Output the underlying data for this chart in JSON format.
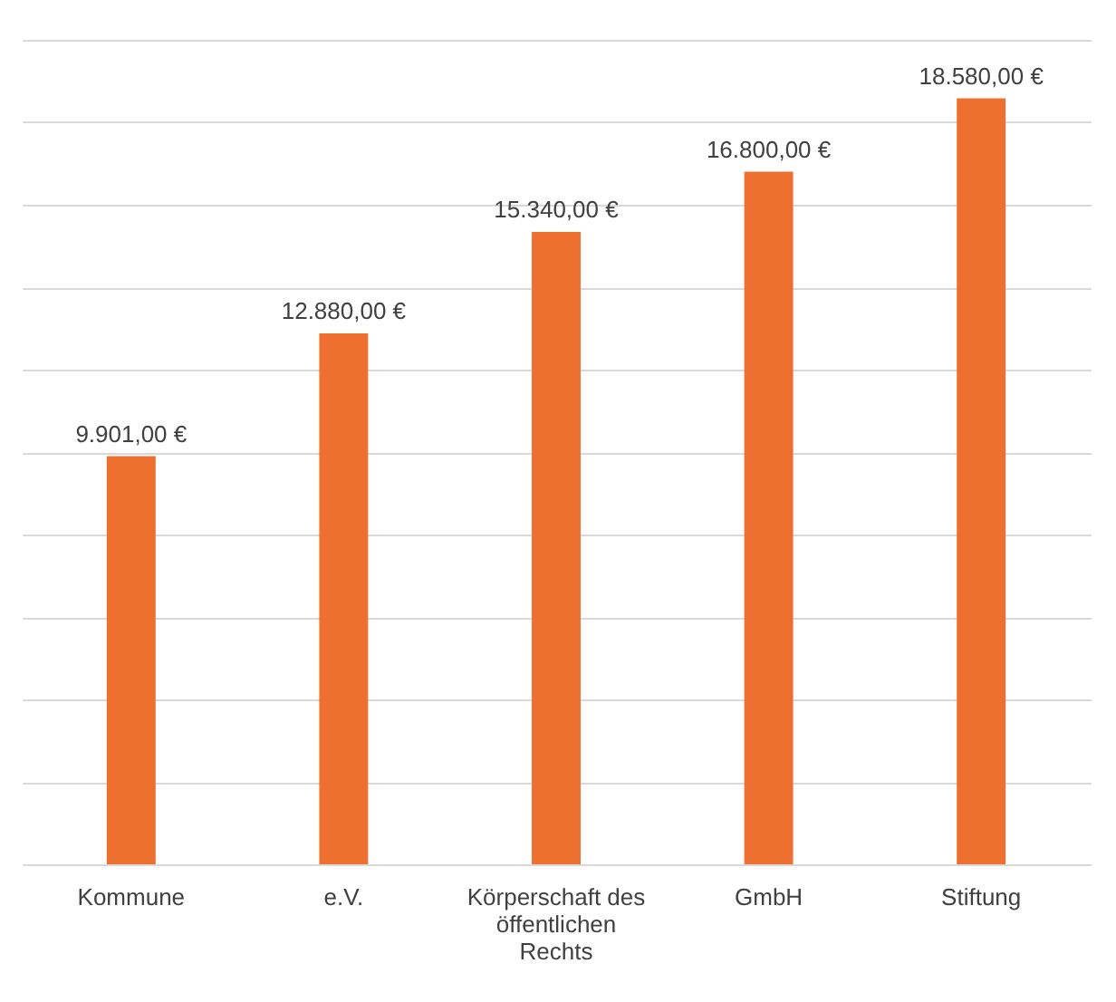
{
  "chart_data": {
    "type": "bar",
    "categories": [
      "Kommune",
      "e.V.",
      "Körperschaft des öffentlichen Rechts",
      "GmbH",
      "Stiftung"
    ],
    "values": [
      9901,
      12880,
      15340,
      16800,
      18580
    ],
    "value_labels": [
      "9.901,00 €",
      "12.880,00 €",
      "15.340,00 €",
      "16.800,00 €",
      "18.580,00 €"
    ],
    "color": "#ed7031",
    "ylim": [
      0,
      20000
    ],
    "yticks": [
      {
        "value": 0,
        "label": null
      },
      {
        "value": 2000,
        "label": null
      },
      {
        "value": 4000,
        "label": null
      },
      {
        "value": 6000,
        "label": null
      },
      {
        "value": 8000,
        "label": null
      },
      {
        "value": 10000,
        "label": null
      },
      {
        "value": 12000,
        "label": null
      },
      {
        "value": 14000,
        "label": null
      },
      {
        "value": 16000,
        "label": null
      },
      {
        "value": 18000,
        "label": null
      },
      {
        "value": 20000,
        "label": null
      }
    ],
    "tick_labels": "x",
    "grid": "y"
  }
}
